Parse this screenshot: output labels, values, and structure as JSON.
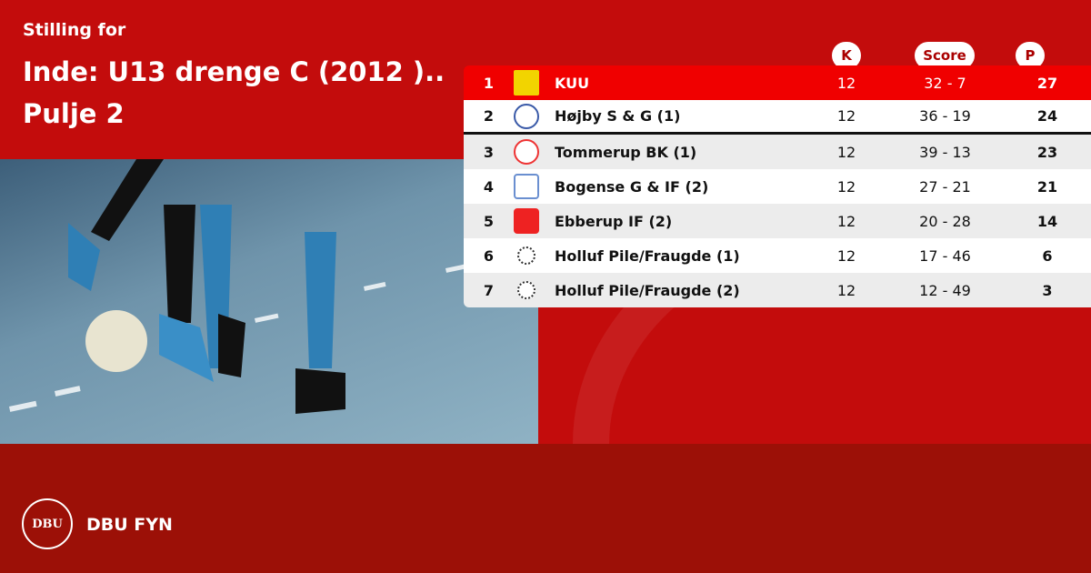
{
  "header": {
    "subtitle": "Stilling for",
    "title": "Inde: U13 drenge C (2012 ).. Pulje 2"
  },
  "columns": {
    "k": "K",
    "score": "Score",
    "p": "P"
  },
  "rows": [
    {
      "pos": "1",
      "team": "KUU",
      "k": "12",
      "score": "32 - 7",
      "p": "27"
    },
    {
      "pos": "2",
      "team": "Højby S & G (1)",
      "k": "12",
      "score": "36 - 19",
      "p": "24"
    },
    {
      "pos": "3",
      "team": "Tommerup BK (1)",
      "k": "12",
      "score": "39 - 13",
      "p": "23"
    },
    {
      "pos": "4",
      "team": "Bogense G & IF (2)",
      "k": "12",
      "score": "27 - 21",
      "p": "21"
    },
    {
      "pos": "5",
      "team": "Ebberup IF (2)",
      "k": "12",
      "score": "20 - 28",
      "p": "14"
    },
    {
      "pos": "6",
      "team": "Holluf Pile/Fraugde (1)",
      "k": "12",
      "score": "17 - 46",
      "p": "6"
    },
    {
      "pos": "7",
      "team": "Holluf Pile/Fraugde (2)",
      "k": "12",
      "score": "12 - 49",
      "p": "3"
    }
  ],
  "footer": {
    "logo_text": "DBU",
    "org": "DBU FYN"
  },
  "colors": {
    "top": "#c30c0c",
    "bottom": "#9c1007",
    "leader": "#f00000"
  }
}
